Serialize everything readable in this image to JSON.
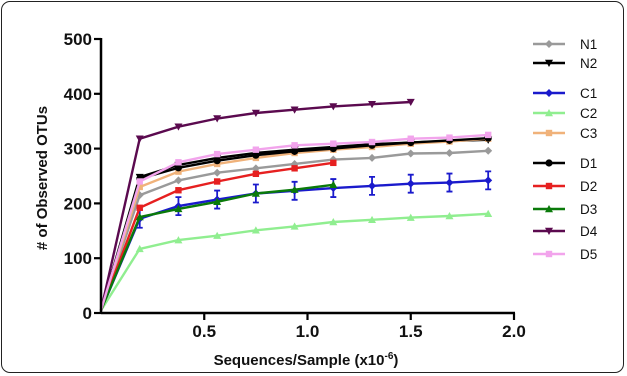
{
  "chart_data": {
    "type": "line",
    "xlabel": "Sequences/Sample (x10",
    "xlabel_exponent": "-6",
    "xlabel_suffix": ")",
    "ylabel": "# of Observed  OTUs",
    "xlim": [
      0,
      2.0
    ],
    "ylim": [
      0,
      500
    ],
    "x_ticks": [
      "0.5",
      "1.0",
      "1.5",
      "2.0"
    ],
    "y_ticks": [
      "0",
      "100",
      "200",
      "300",
      "400",
      "500"
    ],
    "grid": false,
    "legend_position": "right",
    "series": [
      {
        "name": "N1",
        "color": "#9a9a9a",
        "marker": "diamond",
        "x": [
          0,
          0.1875,
          0.375,
          0.5625,
          0.75,
          0.9375,
          1.125,
          1.3125,
          1.5,
          1.6875,
          1.875
        ],
        "y": [
          5,
          215,
          242,
          256,
          264,
          272,
          280,
          283,
          291,
          292,
          296
        ]
      },
      {
        "name": "N2",
        "color": "#000000",
        "marker": "triangle-down",
        "x": [
          0,
          0.1875,
          0.375,
          0.5625,
          0.75,
          0.9375,
          1.125,
          1.3125,
          1.5,
          1.6875,
          1.875
        ],
        "y": [
          5,
          248,
          270,
          283,
          292,
          298,
          303,
          308,
          311,
          314,
          316
        ]
      },
      {
        "name": "C1",
        "color": "#1a1acc",
        "marker": "diamond",
        "error_bars": true,
        "x": [
          0,
          0.1875,
          0.375,
          0.5625,
          0.75,
          0.9375,
          1.125,
          1.3125,
          1.5,
          1.6875,
          1.875
        ],
        "y": [
          5,
          172,
          195,
          207,
          218,
          223,
          228,
          232,
          236,
          238,
          242
        ]
      },
      {
        "name": "C2",
        "color": "#90ee90",
        "marker": "triangle",
        "x": [
          0,
          0.1875,
          0.375,
          0.5625,
          0.75,
          0.9375,
          1.125,
          1.3125,
          1.5,
          1.6875,
          1.875
        ],
        "y": [
          5,
          117,
          133,
          141,
          151,
          158,
          166,
          170,
          174,
          177,
          181
        ]
      },
      {
        "name": "C3",
        "color": "#f0b27a",
        "marker": "square",
        "x": [
          0,
          0.1875,
          0.375,
          0.5625,
          0.75,
          0.9375,
          1.125,
          1.3125,
          1.5,
          1.6875,
          1.875
        ],
        "y": [
          5,
          230,
          258,
          272,
          283,
          292,
          298,
          303,
          309,
          313,
          318
        ]
      },
      {
        "name": "D1",
        "color": "#000000",
        "marker": "circle",
        "x": [
          0,
          0.1875,
          0.375,
          0.5625,
          0.75,
          0.9375,
          1.125,
          1.3125,
          1.5,
          1.6875,
          1.875
        ],
        "y": [
          5,
          245,
          265,
          278,
          288,
          295,
          300,
          306,
          311,
          315,
          319
        ]
      },
      {
        "name": "D2",
        "color": "#e62020",
        "marker": "square",
        "x": [
          0,
          0.1875,
          0.375,
          0.5625,
          0.75,
          0.9375,
          1.125
        ],
        "y": [
          5,
          192,
          224,
          240,
          254,
          264,
          274
        ]
      },
      {
        "name": "D3",
        "color": "#0a7a0a",
        "marker": "triangle",
        "x": [
          0,
          0.1875,
          0.375,
          0.5625,
          0.75,
          0.9375,
          1.125
        ],
        "y": [
          5,
          175,
          190,
          203,
          218,
          225,
          234
        ]
      },
      {
        "name": "D4",
        "color": "#5b0a4f",
        "marker": "triangle-down",
        "x": [
          0,
          0.1875,
          0.375,
          0.5625,
          0.75,
          0.9375,
          1.125,
          1.3125,
          1.5
        ],
        "y": [
          5,
          318,
          340,
          355,
          365,
          371,
          377,
          381,
          385
        ]
      },
      {
        "name": "D5",
        "color": "#f2a4ec",
        "marker": "square",
        "x": [
          0,
          0.1875,
          0.375,
          0.5625,
          0.75,
          0.9375,
          1.125,
          1.3125,
          1.5,
          1.6875,
          1.875
        ],
        "y": [
          5,
          240,
          275,
          290,
          298,
          306,
          309,
          312,
          318,
          320,
          325
        ]
      }
    ]
  }
}
